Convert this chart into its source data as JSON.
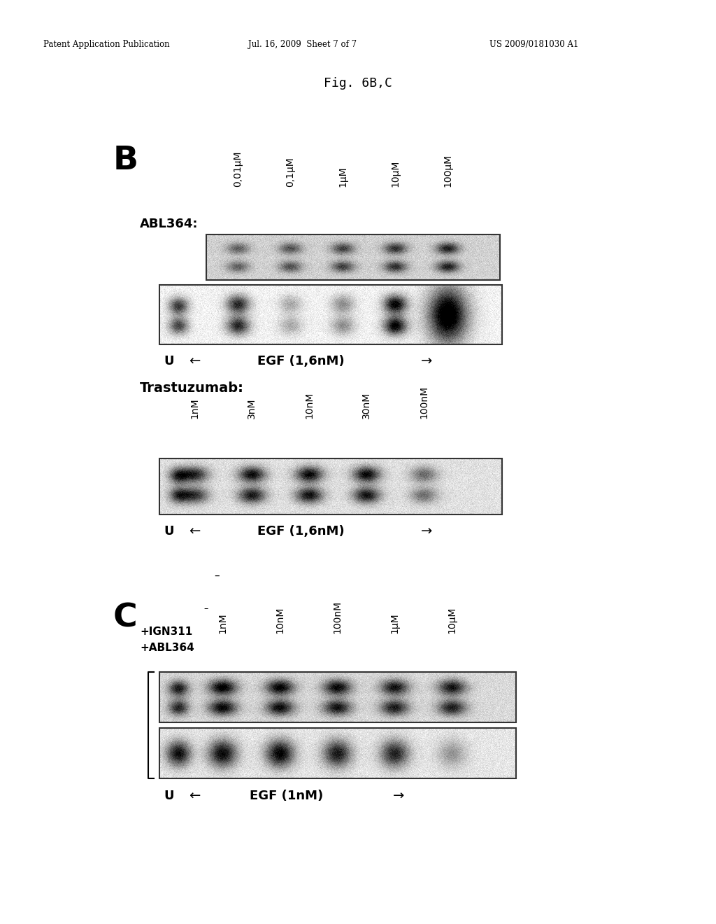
{
  "page_header_left": "Patent Application Publication",
  "page_header_mid": "Jul. 16, 2009  Sheet 7 of 7",
  "page_header_right": "US 2009/0181030 A1",
  "fig_title": "Fig. 6B,C",
  "section_B_label": "B",
  "section_C_label": "C",
  "panel_B1_label": "ABL364:",
  "panel_B1_columns": [
    "0,01μM",
    "0,1μM",
    "1μM",
    "10μM",
    "100μM"
  ],
  "panel_B_axis_label": "EGF (1,6nM)",
  "panel_B2_label": "Trastuzumab:",
  "panel_B2_columns": [
    "1nM",
    "3nM",
    "10nM",
    "30nM",
    "100nM"
  ],
  "panel_C_columns": [
    "1nM",
    "10nM",
    "100nM",
    "1μM",
    "10μM"
  ],
  "panel_C_axis_label": "EGF (1nM)",
  "bg_color": "#ffffff"
}
